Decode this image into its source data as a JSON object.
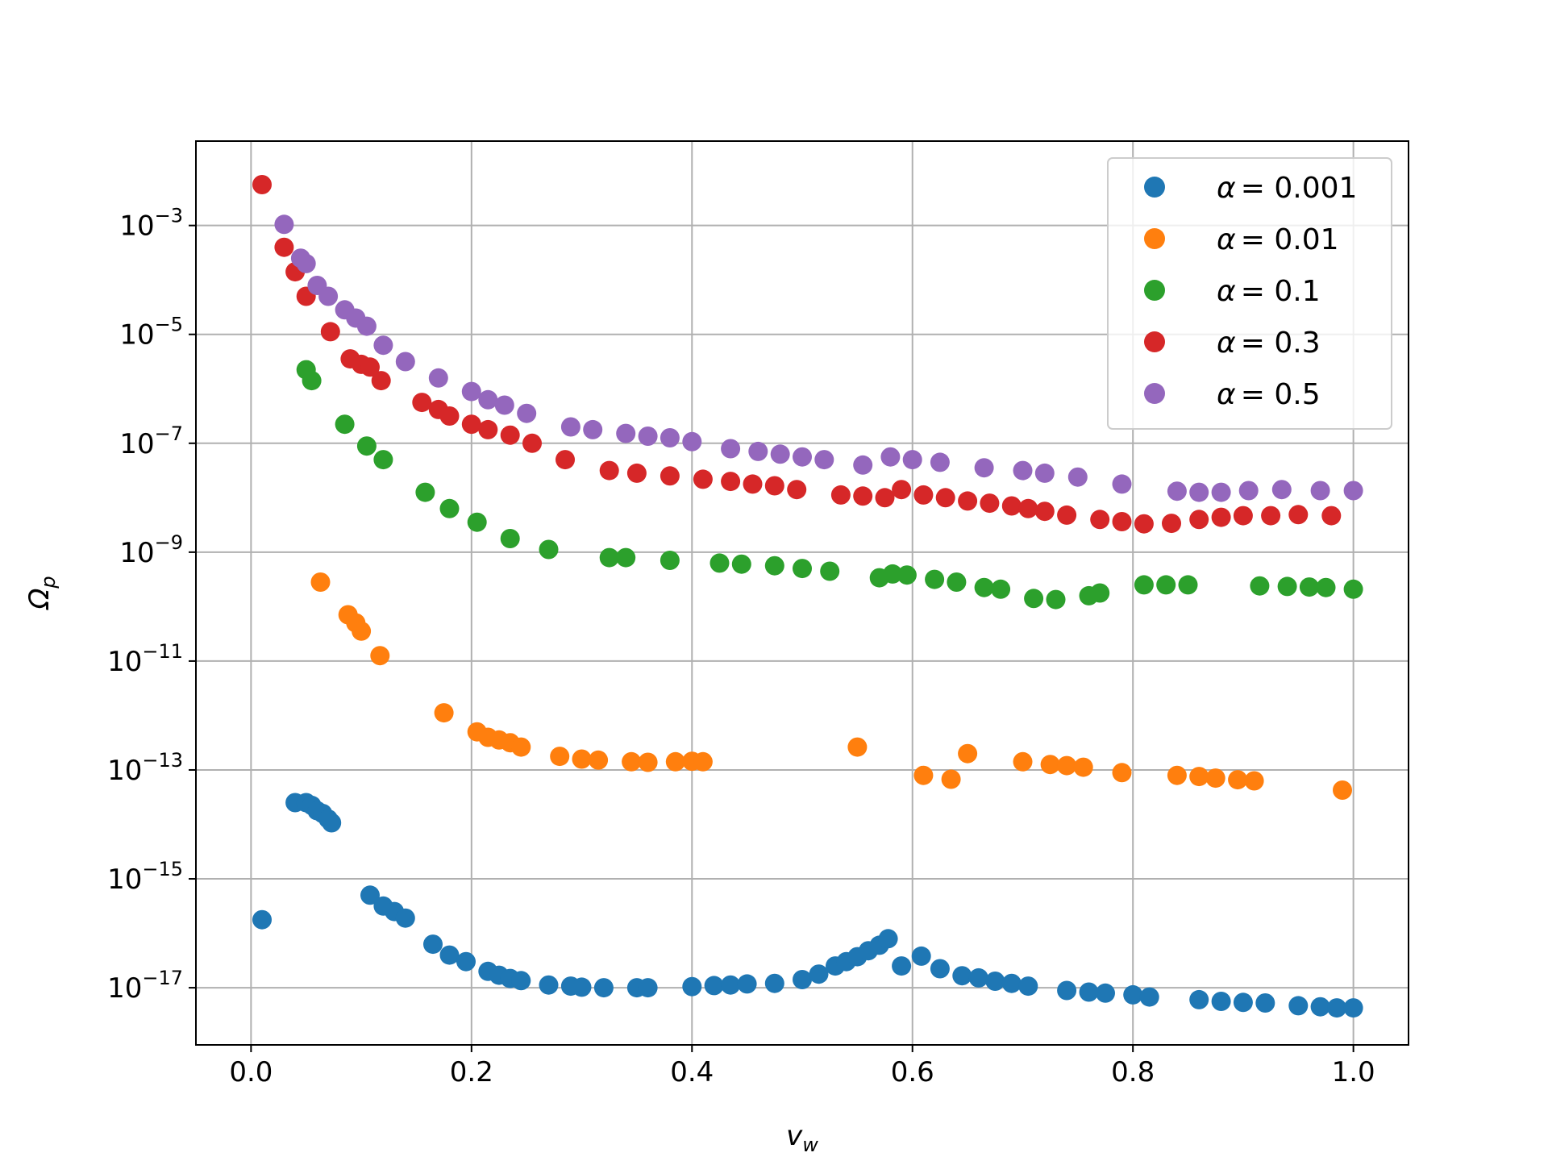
{
  "chart_data": {
    "type": "scatter",
    "title": "",
    "xlabel": "v",
    "xlabel_sub": "w",
    "ylabel": "Ω",
    "ylabel_sub": "p",
    "xlim": [
      -0.05,
      1.05
    ],
    "ylim_log10": [
      -18.05,
      -1.45
    ],
    "yscale": "log",
    "grid": true,
    "legend_position": "top-right",
    "x_ticks": [
      {
        "value": 0.0,
        "label": "0.0"
      },
      {
        "value": 0.2,
        "label": "0.2"
      },
      {
        "value": 0.4,
        "label": "0.4"
      },
      {
        "value": 0.6,
        "label": "0.6"
      },
      {
        "value": 0.8,
        "label": "0.8"
      },
      {
        "value": 1.0,
        "label": "1.0"
      }
    ],
    "y_ticks": [
      {
        "exp": -3,
        "base": "10",
        "exponent": "−3"
      },
      {
        "exp": -5,
        "base": "10",
        "exponent": "−5"
      },
      {
        "exp": -7,
        "base": "10",
        "exponent": "−7"
      },
      {
        "exp": -9,
        "base": "10",
        "exponent": "−9"
      },
      {
        "exp": -11,
        "base": "10",
        "exponent": "−11"
      },
      {
        "exp": -13,
        "base": "10",
        "exponent": "−13"
      },
      {
        "exp": -15,
        "base": "10",
        "exponent": "−15"
      },
      {
        "exp": -17,
        "base": "10",
        "exponent": "−17"
      }
    ],
    "series": [
      {
        "name": "α = 0.001",
        "label_symbol": "α",
        "label_value": "= 0.001",
        "color": "#1f77b4",
        "points": [
          [
            0.01,
            -15.75
          ],
          [
            0.04,
            -13.6
          ],
          [
            0.05,
            -13.6
          ],
          [
            0.055,
            -13.65
          ],
          [
            0.06,
            -13.75
          ],
          [
            0.065,
            -13.8
          ],
          [
            0.07,
            -13.9
          ],
          [
            0.073,
            -13.97
          ],
          [
            0.108,
            -15.3
          ],
          [
            0.12,
            -15.5
          ],
          [
            0.13,
            -15.6
          ],
          [
            0.14,
            -15.72
          ],
          [
            0.165,
            -16.2
          ],
          [
            0.18,
            -16.4
          ],
          [
            0.195,
            -16.52
          ],
          [
            0.215,
            -16.7
          ],
          [
            0.225,
            -16.77
          ],
          [
            0.235,
            -16.83
          ],
          [
            0.245,
            -16.87
          ],
          [
            0.27,
            -16.95
          ],
          [
            0.29,
            -16.97
          ],
          [
            0.3,
            -16.99
          ],
          [
            0.32,
            -17.0
          ],
          [
            0.35,
            -17.0
          ],
          [
            0.36,
            -17.0
          ],
          [
            0.4,
            -16.98
          ],
          [
            0.42,
            -16.96
          ],
          [
            0.435,
            -16.95
          ],
          [
            0.45,
            -16.93
          ],
          [
            0.475,
            -16.92
          ],
          [
            0.5,
            -16.85
          ],
          [
            0.515,
            -16.75
          ],
          [
            0.53,
            -16.6
          ],
          [
            0.54,
            -16.52
          ],
          [
            0.55,
            -16.43
          ],
          [
            0.56,
            -16.32
          ],
          [
            0.57,
            -16.22
          ],
          [
            0.578,
            -16.1
          ],
          [
            0.59,
            -16.6
          ],
          [
            0.608,
            -16.42
          ],
          [
            0.625,
            -16.65
          ],
          [
            0.645,
            -16.78
          ],
          [
            0.66,
            -16.82
          ],
          [
            0.675,
            -16.88
          ],
          [
            0.69,
            -16.92
          ],
          [
            0.705,
            -16.97
          ],
          [
            0.74,
            -17.05
          ],
          [
            0.76,
            -17.08
          ],
          [
            0.775,
            -17.1
          ],
          [
            0.8,
            -17.13
          ],
          [
            0.815,
            -17.17
          ],
          [
            0.86,
            -17.22
          ],
          [
            0.88,
            -17.25
          ],
          [
            0.9,
            -17.27
          ],
          [
            0.92,
            -17.28
          ],
          [
            0.95,
            -17.33
          ],
          [
            0.97,
            -17.35
          ],
          [
            0.985,
            -17.37
          ],
          [
            1.0,
            -17.37
          ]
        ]
      },
      {
        "name": "α = 0.01",
        "label_symbol": "α",
        "label_value": "= 0.01",
        "color": "#ff7f0e",
        "points": [
          [
            0.063,
            -9.55
          ],
          [
            0.088,
            -10.15
          ],
          [
            0.095,
            -10.3
          ],
          [
            0.1,
            -10.45
          ],
          [
            0.117,
            -10.9
          ],
          [
            0.175,
            -11.95
          ],
          [
            0.205,
            -12.3
          ],
          [
            0.215,
            -12.4
          ],
          [
            0.225,
            -12.45
          ],
          [
            0.235,
            -12.5
          ],
          [
            0.245,
            -12.58
          ],
          [
            0.28,
            -12.75
          ],
          [
            0.3,
            -12.8
          ],
          [
            0.315,
            -12.82
          ],
          [
            0.345,
            -12.85
          ],
          [
            0.36,
            -12.86
          ],
          [
            0.385,
            -12.85
          ],
          [
            0.4,
            -12.84
          ],
          [
            0.41,
            -12.85
          ],
          [
            0.55,
            -12.58
          ],
          [
            0.61,
            -13.1
          ],
          [
            0.635,
            -13.17
          ],
          [
            0.65,
            -12.7
          ],
          [
            0.7,
            -12.85
          ],
          [
            0.725,
            -12.9
          ],
          [
            0.74,
            -12.92
          ],
          [
            0.755,
            -12.95
          ],
          [
            0.79,
            -13.05
          ],
          [
            0.84,
            -13.1
          ],
          [
            0.86,
            -13.12
          ],
          [
            0.875,
            -13.15
          ],
          [
            0.895,
            -13.18
          ],
          [
            0.91,
            -13.2
          ],
          [
            0.99,
            -13.37
          ]
        ]
      },
      {
        "name": "α = 0.1",
        "label_symbol": "α",
        "label_value": "= 0.1",
        "color": "#2ca02c",
        "points": [
          [
            0.05,
            -5.65
          ],
          [
            0.055,
            -5.85
          ],
          [
            0.085,
            -6.65
          ],
          [
            0.105,
            -7.05
          ],
          [
            0.12,
            -7.3
          ],
          [
            0.158,
            -7.9
          ],
          [
            0.18,
            -8.2
          ],
          [
            0.205,
            -8.45
          ],
          [
            0.235,
            -8.75
          ],
          [
            0.27,
            -8.95
          ],
          [
            0.325,
            -9.1
          ],
          [
            0.34,
            -9.1
          ],
          [
            0.38,
            -9.15
          ],
          [
            0.425,
            -9.2
          ],
          [
            0.445,
            -9.22
          ],
          [
            0.475,
            -9.25
          ],
          [
            0.5,
            -9.3
          ],
          [
            0.525,
            -9.35
          ],
          [
            0.57,
            -9.47
          ],
          [
            0.582,
            -9.4
          ],
          [
            0.595,
            -9.42
          ],
          [
            0.62,
            -9.5
          ],
          [
            0.64,
            -9.55
          ],
          [
            0.665,
            -9.65
          ],
          [
            0.68,
            -9.68
          ],
          [
            0.71,
            -9.85
          ],
          [
            0.73,
            -9.87
          ],
          [
            0.76,
            -9.8
          ],
          [
            0.77,
            -9.75
          ],
          [
            0.81,
            -9.6
          ],
          [
            0.83,
            -9.6
          ],
          [
            0.85,
            -9.6
          ],
          [
            0.915,
            -9.62
          ],
          [
            0.94,
            -9.63
          ],
          [
            0.96,
            -9.64
          ],
          [
            0.975,
            -9.65
          ],
          [
            1.0,
            -9.68
          ]
        ]
      },
      {
        "name": "α = 0.3",
        "label_symbol": "α",
        "label_value": "= 0.3",
        "color": "#d62728",
        "points": [
          [
            0.01,
            -2.25
          ],
          [
            0.03,
            -3.4
          ],
          [
            0.04,
            -3.85
          ],
          [
            0.05,
            -4.3
          ],
          [
            0.072,
            -4.95
          ],
          [
            0.09,
            -5.45
          ],
          [
            0.1,
            -5.55
          ],
          [
            0.108,
            -5.6
          ],
          [
            0.118,
            -5.85
          ],
          [
            0.155,
            -6.25
          ],
          [
            0.17,
            -6.38
          ],
          [
            0.18,
            -6.5
          ],
          [
            0.2,
            -6.65
          ],
          [
            0.215,
            -6.75
          ],
          [
            0.235,
            -6.85
          ],
          [
            0.255,
            -7.0
          ],
          [
            0.285,
            -7.3
          ],
          [
            0.325,
            -7.5
          ],
          [
            0.35,
            -7.55
          ],
          [
            0.38,
            -7.6
          ],
          [
            0.41,
            -7.66
          ],
          [
            0.435,
            -7.7
          ],
          [
            0.455,
            -7.75
          ],
          [
            0.475,
            -7.78
          ],
          [
            0.495,
            -7.85
          ],
          [
            0.535,
            -7.95
          ],
          [
            0.555,
            -7.97
          ],
          [
            0.575,
            -8.0
          ],
          [
            0.59,
            -7.85
          ],
          [
            0.61,
            -7.95
          ],
          [
            0.63,
            -8.0
          ],
          [
            0.65,
            -8.06
          ],
          [
            0.67,
            -8.1
          ],
          [
            0.69,
            -8.15
          ],
          [
            0.705,
            -8.2
          ],
          [
            0.72,
            -8.25
          ],
          [
            0.74,
            -8.32
          ],
          [
            0.77,
            -8.4
          ],
          [
            0.79,
            -8.44
          ],
          [
            0.81,
            -8.48
          ],
          [
            0.835,
            -8.47
          ],
          [
            0.86,
            -8.4
          ],
          [
            0.88,
            -8.36
          ],
          [
            0.9,
            -8.33
          ],
          [
            0.925,
            -8.33
          ],
          [
            0.95,
            -8.31
          ],
          [
            0.98,
            -8.33
          ]
        ]
      },
      {
        "name": "α = 0.5",
        "label_symbol": "α",
        "label_value": "= 0.5",
        "color": "#9467bd",
        "points": [
          [
            0.03,
            -2.98
          ],
          [
            0.045,
            -3.6
          ],
          [
            0.05,
            -3.7
          ],
          [
            0.06,
            -4.1
          ],
          [
            0.07,
            -4.3
          ],
          [
            0.085,
            -4.55
          ],
          [
            0.095,
            -4.7
          ],
          [
            0.105,
            -4.85
          ],
          [
            0.12,
            -5.2
          ],
          [
            0.14,
            -5.5
          ],
          [
            0.17,
            -5.8
          ],
          [
            0.2,
            -6.05
          ],
          [
            0.215,
            -6.2
          ],
          [
            0.23,
            -6.3
          ],
          [
            0.25,
            -6.45
          ],
          [
            0.29,
            -6.7
          ],
          [
            0.31,
            -6.75
          ],
          [
            0.34,
            -6.82
          ],
          [
            0.36,
            -6.87
          ],
          [
            0.38,
            -6.9
          ],
          [
            0.4,
            -6.97
          ],
          [
            0.435,
            -7.1
          ],
          [
            0.46,
            -7.15
          ],
          [
            0.48,
            -7.2
          ],
          [
            0.5,
            -7.25
          ],
          [
            0.52,
            -7.3
          ],
          [
            0.555,
            -7.4
          ],
          [
            0.58,
            -7.25
          ],
          [
            0.6,
            -7.3
          ],
          [
            0.625,
            -7.35
          ],
          [
            0.665,
            -7.45
          ],
          [
            0.7,
            -7.5
          ],
          [
            0.72,
            -7.55
          ],
          [
            0.75,
            -7.62
          ],
          [
            0.79,
            -7.75
          ],
          [
            0.84,
            -7.88
          ],
          [
            0.86,
            -7.9
          ],
          [
            0.88,
            -7.9
          ],
          [
            0.905,
            -7.87
          ],
          [
            0.935,
            -7.85
          ],
          [
            0.97,
            -7.87
          ],
          [
            1.0,
            -7.87
          ]
        ]
      }
    ]
  }
}
